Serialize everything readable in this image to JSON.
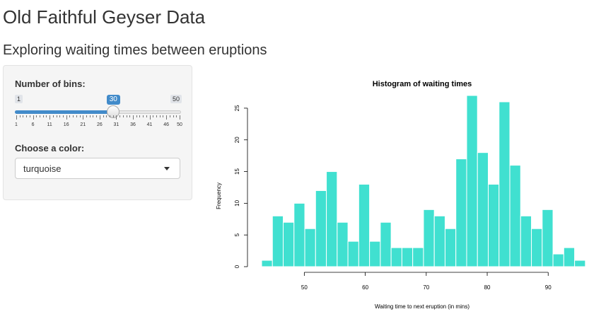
{
  "page": {
    "title": "Old Faithful Geyser Data",
    "subtitle": "Exploring waiting times between eruptions"
  },
  "sidebar": {
    "bins_label": "Number of bins:",
    "slider": {
      "min": 1,
      "max": 50,
      "value": 30,
      "min_label": "1",
      "max_label": "50",
      "value_label": "30",
      "tick_labels": [
        "1",
        "6",
        "11",
        "16",
        "21",
        "26",
        "31",
        "36",
        "41",
        "46",
        "50"
      ]
    },
    "color_label": "Choose a color:",
    "color_select_value": "turquoise"
  },
  "chart_data": {
    "type": "bar",
    "title": "Histogram of waiting times",
    "xlabel": "Waiting time to next eruption (in mins)",
    "ylabel": "Frequency",
    "bin_start": 43,
    "bin_width": 1.77,
    "values": [
      1,
      8,
      7,
      10,
      6,
      12,
      15,
      7,
      4,
      13,
      4,
      7,
      3,
      3,
      3,
      9,
      8,
      6,
      17,
      27,
      18,
      13,
      26,
      16,
      8,
      6,
      9,
      2,
      3,
      1
    ],
    "x_ticks": [
      50,
      60,
      70,
      80,
      90
    ],
    "y_ticks": [
      0,
      5,
      10,
      15,
      20,
      25
    ],
    "xlim": [
      43,
      96
    ],
    "ylim": [
      0,
      27
    ],
    "bar_color": "#40E0D0",
    "grid": false
  }
}
